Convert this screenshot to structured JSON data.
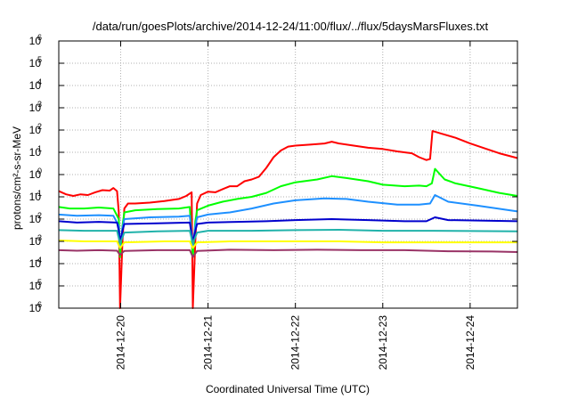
{
  "chart_data": {
    "type": "line",
    "title": "/data/run/goesPlots/archive/2014-12-24/11:00/flux/../flux/5daysMarsFluxes.txt",
    "xlabel": "Coordinated Universal Time (UTC)",
    "ylabel": "protons/cm²-s-sr-MeV",
    "yscale": "log",
    "ylim": [
      1e-06,
      1000000.0
    ],
    "xlim": [
      "2014-12-19 07:00",
      "2014-12-24 13:00"
    ],
    "grid": "dotted",
    "legend": "none",
    "x_ticks": [
      {
        "x": "2014-12-20 00:00",
        "label": "2014-12-20"
      },
      {
        "x": "2014-12-21 00:00",
        "label": "2014-12-21"
      },
      {
        "x": "2014-12-22 00:00",
        "label": "2014-12-22"
      },
      {
        "x": "2014-12-23 00:00",
        "label": "2014-12-23"
      },
      {
        "x": "2014-12-24 00:00",
        "label": "2014-12-24"
      }
    ],
    "y_ticks": [
      {
        "base": "10",
        "exp": "-6"
      },
      {
        "base": "10",
        "exp": "-5"
      },
      {
        "base": "10",
        "exp": "-4"
      },
      {
        "base": "10",
        "exp": "-3"
      },
      {
        "base": "10",
        "exp": "-2"
      },
      {
        "base": "10",
        "exp": "-1"
      },
      {
        "base": "10",
        "exp": "0"
      },
      {
        "base": "10",
        "exp": "1"
      },
      {
        "base": "10",
        "exp": "2"
      },
      {
        "base": "10",
        "exp": "3"
      },
      {
        "base": "10",
        "exp": "4"
      },
      {
        "base": "10",
        "exp": "5"
      },
      {
        "base": "10",
        "exp": "6"
      }
    ],
    "series": [
      {
        "color": "#ff0000",
        "points": [
          [
            "2014-12-19 07:00",
            0.18
          ],
          [
            "2014-12-19 09:00",
            0.13
          ],
          [
            "2014-12-19 11:00",
            0.11
          ],
          [
            "2014-12-19 13:00",
            0.13
          ],
          [
            "2014-12-19 15:00",
            0.12
          ],
          [
            "2014-12-19 17:00",
            0.16
          ],
          [
            "2014-12-19 19:00",
            0.2
          ],
          [
            "2014-12-19 21:00",
            0.19
          ],
          [
            "2014-12-19 22:00",
            0.25
          ],
          [
            "2014-12-19 23:00",
            0.18
          ],
          [
            "2014-12-19 23:30",
            0.02
          ],
          [
            "2014-12-19 23:50",
            1e-06
          ],
          [
            "2014-12-20 00:30",
            0.001
          ],
          [
            "2014-12-20 01:00",
            0.03
          ],
          [
            "2014-12-20 02:00",
            0.05
          ],
          [
            "2014-12-20 04:00",
            0.05
          ],
          [
            "2014-12-20 08:00",
            0.055
          ],
          [
            "2014-12-20 12:00",
            0.065
          ],
          [
            "2014-12-20 16:00",
            0.08
          ],
          [
            "2014-12-20 18:00",
            0.11
          ],
          [
            "2014-12-20 19:30",
            0.16
          ],
          [
            "2014-12-20 19:50",
            1e-06
          ],
          [
            "2014-12-20 20:30",
            0.001
          ],
          [
            "2014-12-20 21:00",
            0.05
          ],
          [
            "2014-12-20 22:00",
            0.12
          ],
          [
            "2014-12-21 00:00",
            0.17
          ],
          [
            "2014-12-21 02:00",
            0.16
          ],
          [
            "2014-12-21 04:00",
            0.22
          ],
          [
            "2014-12-21 06:00",
            0.3
          ],
          [
            "2014-12-21 08:00",
            0.3
          ],
          [
            "2014-12-21 10:00",
            0.5
          ],
          [
            "2014-12-21 12:00",
            0.6
          ],
          [
            "2014-12-21 14:00",
            0.8
          ],
          [
            "2014-12-21 16:00",
            2.0
          ],
          [
            "2014-12-21 18:00",
            6
          ],
          [
            "2014-12-21 20:00",
            12
          ],
          [
            "2014-12-21 22:00",
            18
          ],
          [
            "2014-12-22 00:00",
            20
          ],
          [
            "2014-12-22 04:00",
            22
          ],
          [
            "2014-12-22 08:00",
            25
          ],
          [
            "2014-12-22 10:00",
            30
          ],
          [
            "2014-12-22 12:00",
            25
          ],
          [
            "2014-12-22 16:00",
            20
          ],
          [
            "2014-12-22 20:00",
            16
          ],
          [
            "2014-12-23 00:00",
            14
          ],
          [
            "2014-12-23 04:00",
            11
          ],
          [
            "2014-12-23 08:00",
            9
          ],
          [
            "2014-12-23 10:00",
            6
          ],
          [
            "2014-12-23 12:00",
            4.5
          ],
          [
            "2014-12-23 13:00",
            5
          ],
          [
            "2014-12-23 13:40",
            90
          ],
          [
            "2014-12-23 16:00",
            70
          ],
          [
            "2014-12-23 20:00",
            45
          ],
          [
            "2014-12-24 00:00",
            25
          ],
          [
            "2014-12-24 04:00",
            15
          ],
          [
            "2014-12-24 08:00",
            9
          ],
          [
            "2014-12-24 13:00",
            5.5
          ]
        ]
      },
      {
        "color": "#00ff00",
        "points": [
          [
            "2014-12-19 07:00",
            0.035
          ],
          [
            "2014-12-19 10:00",
            0.03
          ],
          [
            "2014-12-19 14:00",
            0.03
          ],
          [
            "2014-12-19 18:00",
            0.033
          ],
          [
            "2014-12-19 22:00",
            0.03
          ],
          [
            "2014-12-19 23:30",
            0.01
          ],
          [
            "2014-12-19 23:50",
            0.0002
          ],
          [
            "2014-12-20 00:30",
            0.005
          ],
          [
            "2014-12-20 01:00",
            0.02
          ],
          [
            "2014-12-20 04:00",
            0.025
          ],
          [
            "2014-12-20 10:00",
            0.028
          ],
          [
            "2014-12-20 16:00",
            0.03
          ],
          [
            "2014-12-20 19:00",
            0.035
          ],
          [
            "2014-12-20 19:50",
            0.0002
          ],
          [
            "2014-12-20 20:30",
            0.008
          ],
          [
            "2014-12-20 21:00",
            0.025
          ],
          [
            "2014-12-21 00:00",
            0.04
          ],
          [
            "2014-12-21 04:00",
            0.06
          ],
          [
            "2014-12-21 08:00",
            0.08
          ],
          [
            "2014-12-21 12:00",
            0.1
          ],
          [
            "2014-12-21 16:00",
            0.15
          ],
          [
            "2014-12-21 20:00",
            0.3
          ],
          [
            "2014-12-22 00:00",
            0.45
          ],
          [
            "2014-12-22 06:00",
            0.6
          ],
          [
            "2014-12-22 10:00",
            0.85
          ],
          [
            "2014-12-22 14:00",
            0.7
          ],
          [
            "2014-12-22 20:00",
            0.5
          ],
          [
            "2014-12-23 00:00",
            0.35
          ],
          [
            "2014-12-23 06:00",
            0.3
          ],
          [
            "2014-12-23 10:00",
            0.32
          ],
          [
            "2014-12-23 12:00",
            0.3
          ],
          [
            "2014-12-23 13:30",
            0.4
          ],
          [
            "2014-12-23 14:20",
            1.8
          ],
          [
            "2014-12-23 17:00",
            0.6
          ],
          [
            "2014-12-23 20:00",
            0.4
          ],
          [
            "2014-12-24 02:00",
            0.25
          ],
          [
            "2014-12-24 08:00",
            0.15
          ],
          [
            "2014-12-24 13:00",
            0.11
          ]
        ]
      },
      {
        "color": "#1e90ff",
        "points": [
          [
            "2014-12-19 07:00",
            0.016
          ],
          [
            "2014-12-19 12:00",
            0.014
          ],
          [
            "2014-12-19 18:00",
            0.015
          ],
          [
            "2014-12-19 22:00",
            0.014
          ],
          [
            "2014-12-19 23:30",
            0.005
          ],
          [
            "2014-12-19 23:50",
            0.0006
          ],
          [
            "2014-12-20 00:30",
            0.004
          ],
          [
            "2014-12-20 01:00",
            0.01
          ],
          [
            "2014-12-20 08:00",
            0.012
          ],
          [
            "2014-12-20 16:00",
            0.013
          ],
          [
            "2014-12-20 19:00",
            0.014
          ],
          [
            "2014-12-20 19:50",
            0.0006
          ],
          [
            "2014-12-20 20:30",
            0.005
          ],
          [
            "2014-12-20 21:00",
            0.012
          ],
          [
            "2014-12-21 00:00",
            0.016
          ],
          [
            "2014-12-21 06:00",
            0.02
          ],
          [
            "2014-12-21 12:00",
            0.03
          ],
          [
            "2014-12-21 18:00",
            0.05
          ],
          [
            "2014-12-22 00:00",
            0.07
          ],
          [
            "2014-12-22 08:00",
            0.085
          ],
          [
            "2014-12-22 14:00",
            0.08
          ],
          [
            "2014-12-22 20:00",
            0.06
          ],
          [
            "2014-12-23 04:00",
            0.045
          ],
          [
            "2014-12-23 10:00",
            0.045
          ],
          [
            "2014-12-23 13:00",
            0.05
          ],
          [
            "2014-12-23 14:20",
            0.12
          ],
          [
            "2014-12-23 18:00",
            0.06
          ],
          [
            "2014-12-24 02:00",
            0.04
          ],
          [
            "2014-12-24 13:00",
            0.022
          ]
        ]
      },
      {
        "color": "#0000cd",
        "points": [
          [
            "2014-12-19 07:00",
            0.008
          ],
          [
            "2014-12-19 12:00",
            0.007
          ],
          [
            "2014-12-19 18:00",
            0.0075
          ],
          [
            "2014-12-19 23:00",
            0.007
          ],
          [
            "2014-12-19 23:30",
            0.003
          ],
          [
            "2014-12-19 23:50",
            0.0009
          ],
          [
            "2014-12-20 00:30",
            0.003
          ],
          [
            "2014-12-20 01:00",
            0.006
          ],
          [
            "2014-12-20 10:00",
            0.0065
          ],
          [
            "2014-12-20 19:00",
            0.007
          ],
          [
            "2014-12-20 19:50",
            0.0009
          ],
          [
            "2014-12-20 20:30",
            0.003
          ],
          [
            "2014-12-20 21:00",
            0.006
          ],
          [
            "2014-12-21 00:00",
            0.007
          ],
          [
            "2014-12-21 08:00",
            0.0075
          ],
          [
            "2014-12-21 16:00",
            0.008
          ],
          [
            "2014-12-22 00:00",
            0.009
          ],
          [
            "2014-12-22 10:00",
            0.01
          ],
          [
            "2014-12-22 20:00",
            0.009
          ],
          [
            "2014-12-23 06:00",
            0.008
          ],
          [
            "2014-12-23 12:00",
            0.008
          ],
          [
            "2014-12-23 14:20",
            0.012
          ],
          [
            "2014-12-23 18:00",
            0.009
          ],
          [
            "2014-12-24 04:00",
            0.0085
          ],
          [
            "2014-12-24 13:00",
            0.008
          ]
        ]
      },
      {
        "color": "#20b2aa",
        "points": [
          [
            "2014-12-19 07:00",
            0.0032
          ],
          [
            "2014-12-19 14:00",
            0.003
          ],
          [
            "2014-12-19 23:00",
            0.003
          ],
          [
            "2014-12-19 23:50",
            0.0008
          ],
          [
            "2014-12-20 01:00",
            0.0025
          ],
          [
            "2014-12-20 10:00",
            0.0028
          ],
          [
            "2014-12-20 19:00",
            0.003
          ],
          [
            "2014-12-20 19:50",
            0.0008
          ],
          [
            "2014-12-20 21:00",
            0.0025
          ],
          [
            "2014-12-21 00:00",
            0.003
          ],
          [
            "2014-12-21 12:00",
            0.003
          ],
          [
            "2014-12-22 00:00",
            0.0032
          ],
          [
            "2014-12-22 12:00",
            0.0033
          ],
          [
            "2014-12-23 00:00",
            0.003
          ],
          [
            "2014-12-23 14:00",
            0.003
          ],
          [
            "2014-12-24 00:00",
            0.0029
          ],
          [
            "2014-12-24 13:00",
            0.0028
          ]
        ]
      },
      {
        "color": "#ffff00",
        "points": [
          [
            "2014-12-19 07:00",
            0.0011
          ],
          [
            "2014-12-19 14:00",
            0.001
          ],
          [
            "2014-12-19 23:00",
            0.001
          ],
          [
            "2014-12-19 23:50",
            0.0005
          ],
          [
            "2014-12-20 01:00",
            0.0009
          ],
          [
            "2014-12-20 12:00",
            0.001
          ],
          [
            "2014-12-20 19:00",
            0.001
          ],
          [
            "2014-12-20 19:50",
            0.0005
          ],
          [
            "2014-12-20 21:00",
            0.0009
          ],
          [
            "2014-12-21 06:00",
            0.001
          ],
          [
            "2014-12-22 00:00",
            0.001
          ],
          [
            "2014-12-22 12:00",
            0.001
          ],
          [
            "2014-12-23 00:00",
            0.0009
          ],
          [
            "2014-12-23 14:00",
            0.0009
          ],
          [
            "2014-12-24 00:00",
            0.0009
          ],
          [
            "2014-12-24 13:00",
            0.0009
          ]
        ]
      },
      {
        "color": "#993366",
        "points": [
          [
            "2014-12-19 07:00",
            0.0004
          ],
          [
            "2014-12-19 12:00",
            0.00038
          ],
          [
            "2014-12-19 18:00",
            0.0004
          ],
          [
            "2014-12-19 23:00",
            0.00038
          ],
          [
            "2014-12-19 23:50",
            0.00025
          ],
          [
            "2014-12-20 01:00",
            0.00037
          ],
          [
            "2014-12-20 10:00",
            0.0004
          ],
          [
            "2014-12-20 19:00",
            0.0004
          ],
          [
            "2014-12-20 19:50",
            0.0002
          ],
          [
            "2014-12-20 21:00",
            0.00037
          ],
          [
            "2014-12-21 06:00",
            0.00042
          ],
          [
            "2014-12-21 18:00",
            0.0004
          ],
          [
            "2014-12-22 06:00",
            0.00042
          ],
          [
            "2014-12-22 18:00",
            0.0004
          ],
          [
            "2014-12-23 06:00",
            0.0004
          ],
          [
            "2014-12-23 18:00",
            0.00036
          ],
          [
            "2014-12-24 06:00",
            0.00035
          ],
          [
            "2014-12-24 13:00",
            0.00033
          ]
        ]
      }
    ]
  }
}
